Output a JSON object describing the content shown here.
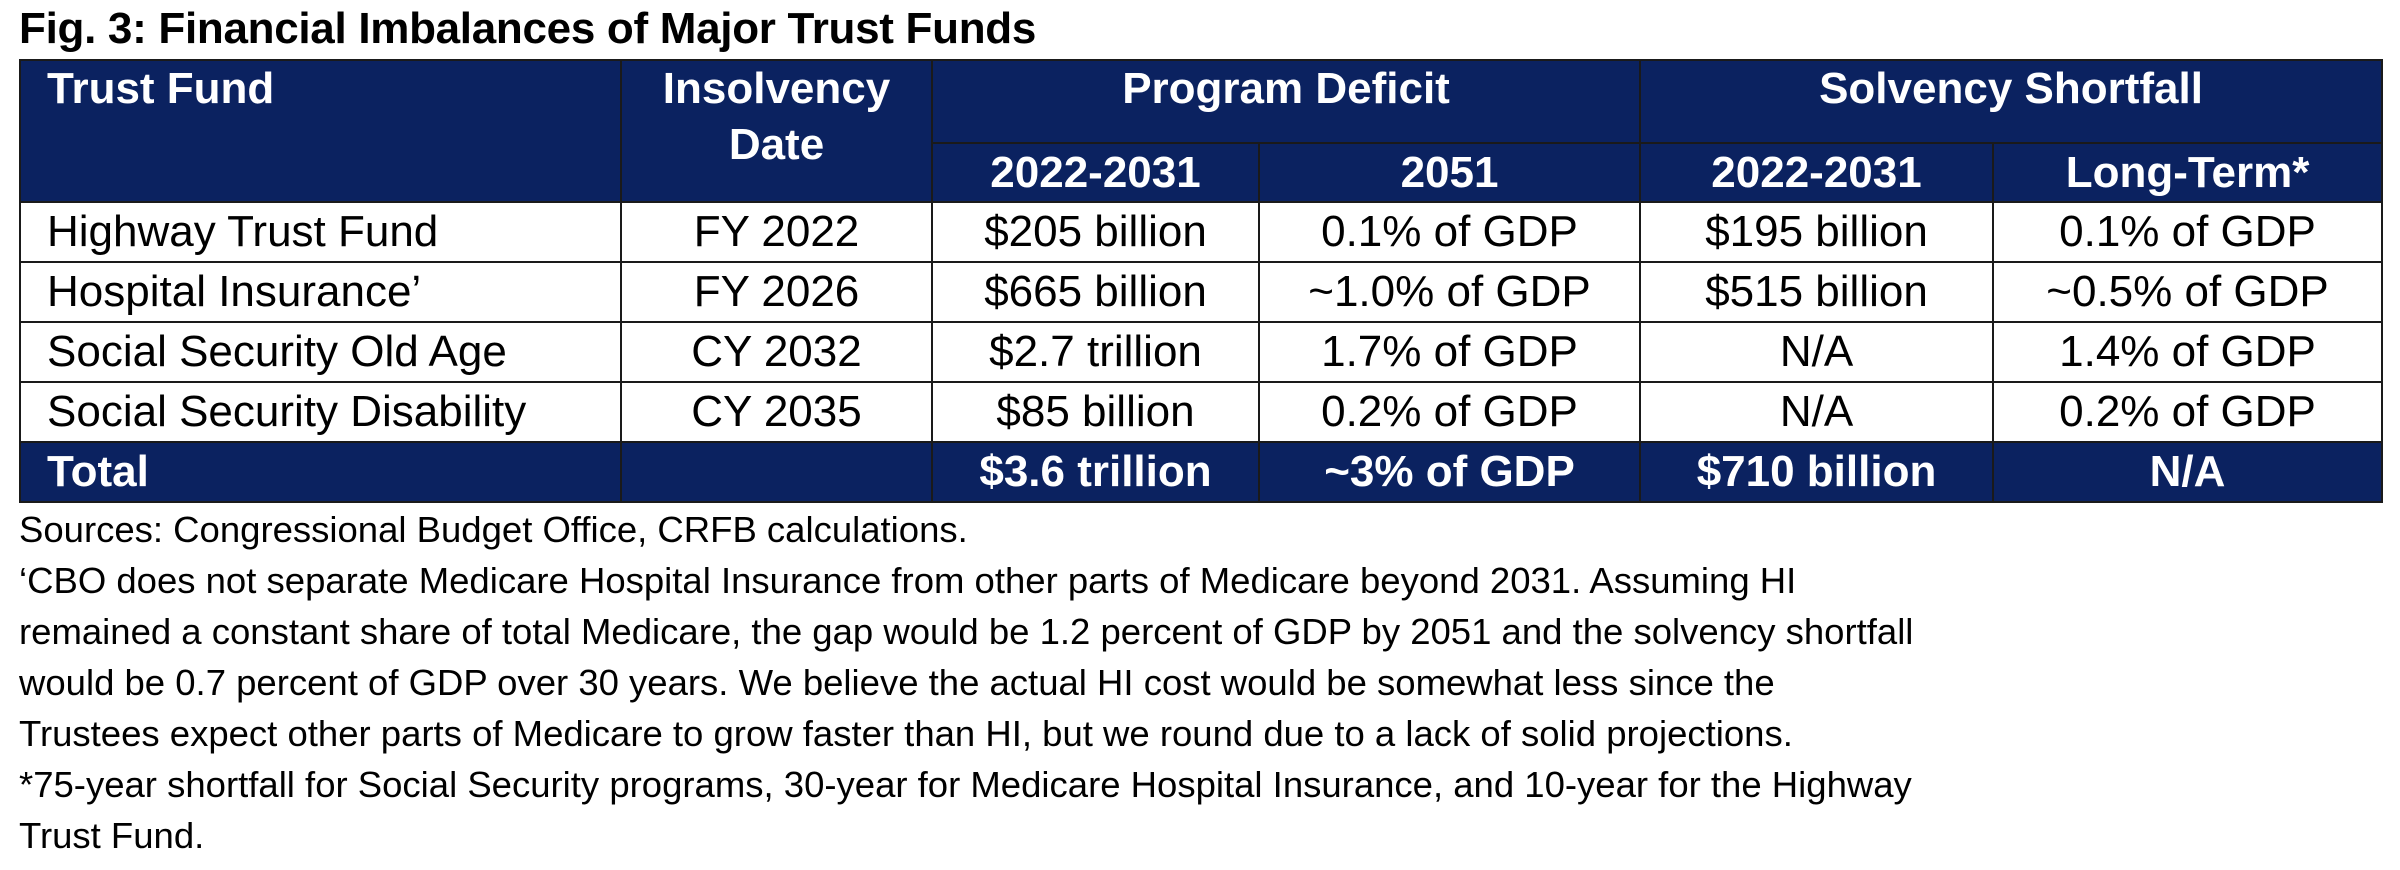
{
  "figure": {
    "title": "Fig. 3: Financial Imbalances of Major Trust Funds"
  },
  "table": {
    "headers": {
      "trust_fund": "Trust Fund",
      "insolvency_date_line1": "Insolvency",
      "insolvency_date_line2": "Date",
      "program_deficit": "Program Deficit",
      "solvency_shortfall": "Solvency Shortfall",
      "pd_2022_2031": "2022-2031",
      "pd_2051": "2051",
      "ss_2022_2031": "2022-2031",
      "ss_long_term": "Long-Term*"
    },
    "rows": [
      {
        "trust_fund": "Highway Trust Fund",
        "insolvency_date": "FY 2022",
        "pd_2022_2031": "$205 billion",
        "pd_2051": "0.1% of GDP",
        "ss_2022_2031": "$195 billion",
        "ss_long_term": "0.1% of GDP"
      },
      {
        "trust_fund": "Hospital Insurance’",
        "insolvency_date": "FY 2026",
        "pd_2022_2031": "$665 billion",
        "pd_2051": "~1.0% of GDP",
        "ss_2022_2031": "$515 billion",
        "ss_long_term": "~0.5% of GDP"
      },
      {
        "trust_fund": "Social Security Old Age",
        "insolvency_date": "CY 2032",
        "pd_2022_2031": "$2.7 trillion",
        "pd_2051": "1.7% of GDP",
        "ss_2022_2031": "N/A",
        "ss_long_term": "1.4% of GDP"
      },
      {
        "trust_fund": "Social Security Disability",
        "insolvency_date": "CY 2035",
        "pd_2022_2031": "$85 billion",
        "pd_2051": "0.2% of GDP",
        "ss_2022_2031": "N/A",
        "ss_long_term": "0.2% of GDP"
      }
    ],
    "total": {
      "trust_fund": "Total",
      "insolvency_date": "",
      "pd_2022_2031": "$3.6 trillion",
      "pd_2051": "~3% of GDP",
      "ss_2022_2031": "$710 billion",
      "ss_long_term": "N/A"
    }
  },
  "notes": {
    "sources": "Sources: Congressional Budget Office, CRFB calculations.",
    "footnote_hi_lines": [
      "‘CBO does not separate Medicare Hospital Insurance from other parts of Medicare beyond 2031. Assuming HI",
      "remained a constant share of total Medicare, the gap would be 1.2 percent of GDP by 2051 and the solvency shortfall",
      "would be 0.7 percent of GDP over 30 years. We believe the actual HI cost would be somewhat less since the",
      "Trustees expect other parts of Medicare to grow faster than HI, but we round due to a lack of solid projections."
    ],
    "footnote_long_term_lines": [
      "*75-year shortfall for Social Security programs, 30-year for Medicare Hospital Insurance, and 10-year for the Highway",
      "Trust Fund."
    ]
  },
  "colors": {
    "header_background": "#0b2260",
    "header_text": "#ffffff",
    "border": "#1a1a1a"
  }
}
